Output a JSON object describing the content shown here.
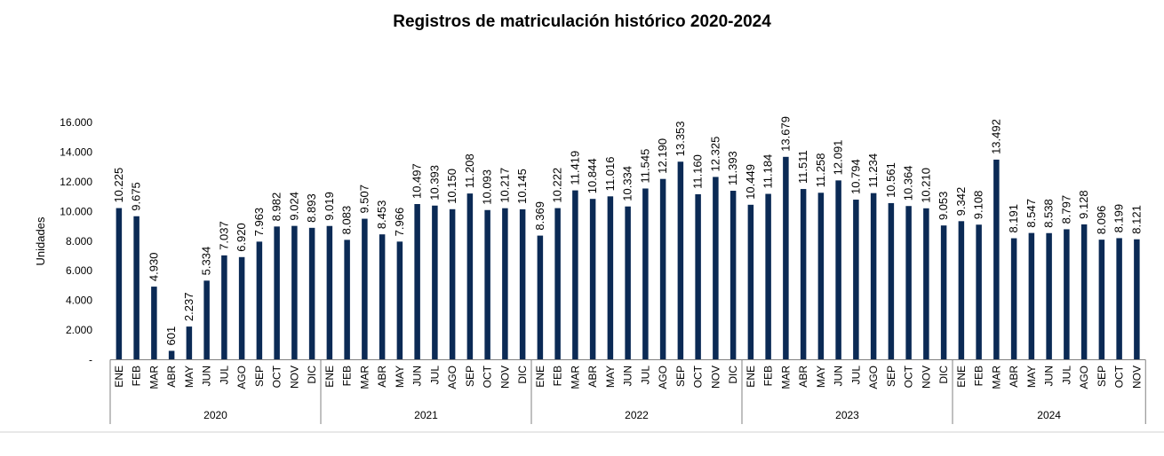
{
  "chart_data": {
    "type": "bar",
    "title": "Registros de matriculación histórico 2020-2024",
    "xlabel": "",
    "ylabel": "Unidades",
    "ylim": [
      0,
      16000
    ],
    "yticks": [
      0,
      2000,
      4000,
      6000,
      8000,
      10000,
      12000,
      14000,
      16000
    ],
    "ytick_labels": [
      "-",
      "2.000",
      "4.000",
      "6.000",
      "8.000",
      "10.000",
      "12.000",
      "14.000",
      "16.000"
    ],
    "grid": false,
    "legend": "none",
    "bar_color": "#0b2a55",
    "groups": [
      {
        "year": "2020",
        "categories": [
          "ENE",
          "FEB",
          "MAR",
          "ABR",
          "MAY",
          "JUN",
          "JUL",
          "AGO",
          "SEP",
          "OCT",
          "NOV",
          "DIC"
        ],
        "values": [
          10225,
          9675,
          4930,
          601,
          2237,
          5334,
          7037,
          6920,
          7963,
          8982,
          9024,
          8893
        ],
        "labels": [
          "10.225",
          "9.675",
          "4.930",
          "601",
          "2.237",
          "5.334",
          "7.037",
          "6.920",
          "7.963",
          "8.982",
          "9.024",
          "8.893"
        ]
      },
      {
        "year": "2021",
        "categories": [
          "ENE",
          "FEB",
          "MAR",
          "ABR",
          "MAY",
          "JUN",
          "JUL",
          "AGO",
          "SEP",
          "OCT",
          "NOV",
          "DIC"
        ],
        "values": [
          9019,
          8083,
          9507,
          8453,
          7966,
          10497,
          10393,
          10150,
          11208,
          10093,
          10217,
          10145
        ],
        "labels": [
          "9.019",
          "8.083",
          "9.507",
          "8.453",
          "7.966",
          "10.497",
          "10.393",
          "10.150",
          "11.208",
          "10.093",
          "10.217",
          "10.145"
        ]
      },
      {
        "year": "2022",
        "categories": [
          "ENE",
          "FEB",
          "MAR",
          "ABR",
          "MAY",
          "JUN",
          "JUL",
          "AGO",
          "SEP",
          "OCT",
          "NOV",
          "DIC"
        ],
        "values": [
          8369,
          10222,
          11419,
          10844,
          11016,
          10334,
          11545,
          12190,
          13353,
          11160,
          12325,
          11393
        ],
        "labels": [
          "8.369",
          "10.222",
          "11.419",
          "10.844",
          "11.016",
          "10.334",
          "11.545",
          "12.190",
          "13.353",
          "11.160",
          "12.325",
          "11.393"
        ]
      },
      {
        "year": "2023",
        "categories": [
          "ENE",
          "FEB",
          "MAR",
          "ABR",
          "MAY",
          "JUN",
          "JUL",
          "AGO",
          "SEP",
          "OCT",
          "NOV",
          "DIC"
        ],
        "values": [
          10449,
          11184,
          13679,
          11511,
          11258,
          12091,
          10794,
          11234,
          10561,
          10364,
          10210,
          9053
        ],
        "labels": [
          "10.449",
          "11.184",
          "13.679",
          "11.511",
          "11.258",
          "12.091",
          "10.794",
          "11.234",
          "10.561",
          "10.364",
          "10.210",
          "9.053"
        ]
      },
      {
        "year": "2024",
        "categories": [
          "ENE",
          "FEB",
          "MAR",
          "ABR",
          "MAY",
          "JUN",
          "JUL",
          "AGO",
          "SEP",
          "OCT",
          "NOV"
        ],
        "values": [
          9342,
          9108,
          13492,
          8191,
          8547,
          8538,
          8797,
          9128,
          8096,
          8199,
          8121
        ],
        "labels": [
          "9.342",
          "9.108",
          "13.492",
          "8.191",
          "8.547",
          "8.538",
          "8.797",
          "9.128",
          "8.096",
          "8.199",
          "8.121"
        ]
      }
    ]
  }
}
